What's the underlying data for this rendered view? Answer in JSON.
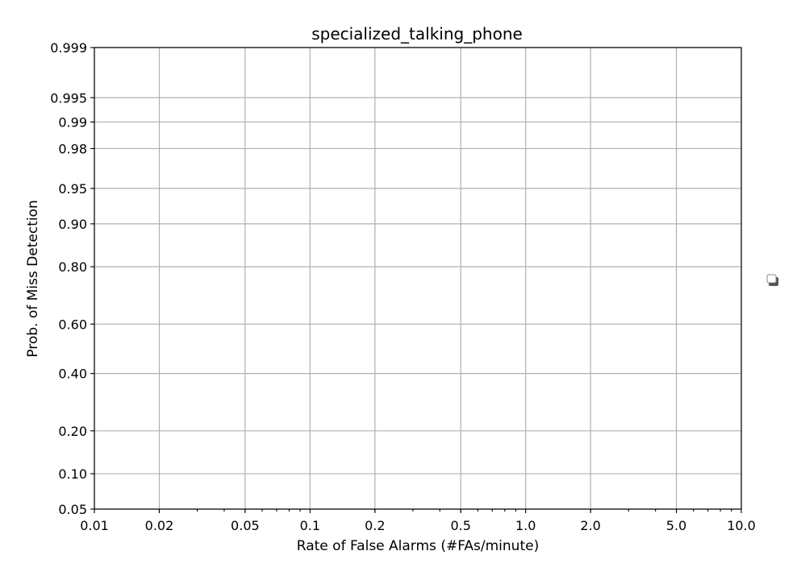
{
  "chart_data": {
    "type": "line",
    "title": "specialized_talking_phone",
    "xlabel": "Rate of False Alarms (#FAs/minute)",
    "ylabel": "Prob. of Miss Detection",
    "x_scale": "log",
    "y_scale": "probit",
    "xlim": [
      0.01,
      10.0
    ],
    "ylim": [
      0.05,
      0.999
    ],
    "x_ticks": [
      0.01,
      0.02,
      0.05,
      0.1,
      0.2,
      0.5,
      1.0,
      2.0,
      5.0,
      10.0
    ],
    "x_tick_labels": [
      "0.01",
      "0.02",
      "0.05",
      "0.1",
      "0.2",
      "0.5",
      "1.0",
      "2.0",
      "5.0",
      "10.0"
    ],
    "y_ticks": [
      0.05,
      0.1,
      0.2,
      0.4,
      0.6,
      0.8,
      0.9,
      0.95,
      0.98,
      0.99,
      0.995,
      0.999
    ],
    "y_tick_labels": [
      "0.05",
      "0.10",
      "0.20",
      "0.40",
      "0.60",
      "0.80",
      "0.90",
      "0.95",
      "0.98",
      "0.99",
      "0.995",
      "0.999"
    ],
    "grid": true,
    "legend": "center-right",
    "series": []
  }
}
